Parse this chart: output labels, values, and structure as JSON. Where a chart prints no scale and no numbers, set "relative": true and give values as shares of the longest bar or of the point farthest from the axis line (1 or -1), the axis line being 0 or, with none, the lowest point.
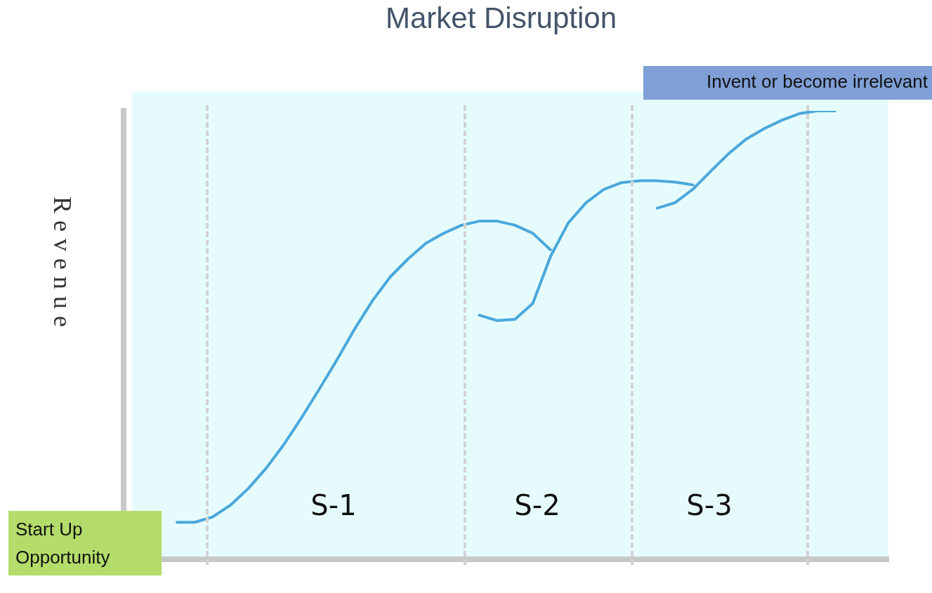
{
  "chart_data": {
    "type": "line",
    "title": "Market Disruption",
    "ylabel": "Revenue",
    "relative": true,
    "legend": false,
    "marker": "none",
    "categories": [
      null,
      null,
      null,
      null,
      null,
      null,
      null,
      null,
      null,
      null,
      null,
      null,
      null,
      null,
      null,
      null,
      null,
      null,
      null,
      null,
      null,
      null,
      null,
      null,
      null,
      null,
      null,
      null,
      null,
      null,
      null,
      null,
      null,
      null,
      null,
      null,
      null,
      null,
      null,
      null,
      null,
      null,
      null,
      null
    ],
    "series": [
      {
        "color": "#4aa8dc",
        "values": [
          null,
          null,
          null,
          0.082,
          0.082,
          0.094,
          0.12,
          0.157,
          0.202,
          0.255,
          0.315,
          0.379,
          0.445,
          0.514,
          0.577,
          0.63,
          0.67,
          0.705,
          0.727,
          0.745,
          0.754,
          0.754,
          0.745,
          0.727,
          0.69,
          null,
          null,
          null,
          null,
          null,
          null,
          null,
          null,
          null,
          null,
          null,
          null,
          null,
          null,
          null,
          null,
          null,
          null,
          null
        ]
      },
      {
        "color": "#4aa8dc",
        "values": [
          null,
          null,
          null,
          null,
          null,
          null,
          null,
          null,
          null,
          null,
          null,
          null,
          null,
          null,
          null,
          null,
          null,
          null,
          null,
          null,
          0.544,
          0.532,
          0.535,
          0.57,
          0.675,
          0.75,
          0.795,
          0.825,
          0.84,
          0.844,
          0.844,
          0.841,
          0.835,
          null,
          null,
          null,
          null,
          null,
          null,
          null,
          null,
          null,
          null,
          null
        ]
      },
      {
        "color": "#4aa8dc",
        "values": [
          null,
          null,
          null,
          null,
          null,
          null,
          null,
          null,
          null,
          null,
          null,
          null,
          null,
          null,
          null,
          null,
          null,
          null,
          null,
          null,
          null,
          null,
          null,
          null,
          null,
          null,
          null,
          null,
          null,
          null,
          0.783,
          0.795,
          0.825,
          0.865,
          0.904,
          0.937,
          0.96,
          0.979,
          0.994,
          1,
          1,
          null,
          null,
          null
        ]
      }
    ],
    "annotations": [
      "S-1",
      "S-2",
      "S-3",
      "Start Up Opportunity",
      "Invent or become irrelevant"
    ]
  }
}
